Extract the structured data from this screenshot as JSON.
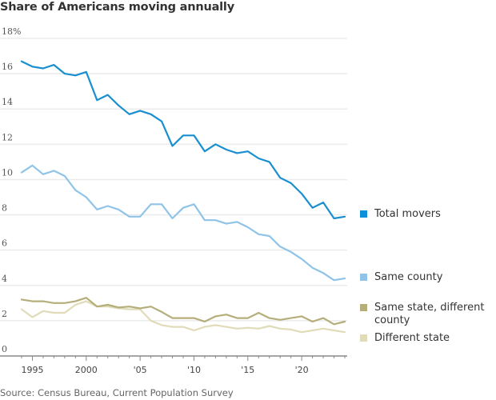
{
  "title": "Share of Americans moving annually",
  "source": "Source: Census Bureau, Current Population Survey",
  "chart_data": {
    "type": "line",
    "title": "Share of Americans moving annually",
    "xlabel": "",
    "ylabel": "",
    "x": [
      1994,
      1995,
      1996,
      1997,
      1998,
      1999,
      2000,
      2001,
      2002,
      2003,
      2004,
      2005,
      2006,
      2007,
      2008,
      2009,
      2010,
      2011,
      2012,
      2013,
      2014,
      2015,
      2016,
      2017,
      2018,
      2019,
      2020,
      2021,
      2022,
      2023,
      2024
    ],
    "xlim": [
      1994,
      2024
    ],
    "ylim": [
      0,
      18
    ],
    "grid": true,
    "y_ticks": [
      {
        "value": 0,
        "label": "0"
      },
      {
        "value": 2,
        "label": "2"
      },
      {
        "value": 4,
        "label": "4"
      },
      {
        "value": 6,
        "label": "6"
      },
      {
        "value": 8,
        "label": "8"
      },
      {
        "value": 10,
        "label": "10"
      },
      {
        "value": 12,
        "label": "12"
      },
      {
        "value": 14,
        "label": "14"
      },
      {
        "value": 16,
        "label": "16"
      },
      {
        "value": 18,
        "label": "18%"
      }
    ],
    "x_ticks": [
      {
        "value": 1995,
        "label": "1995"
      },
      {
        "value": 2000,
        "label": "2000"
      },
      {
        "value": 2005,
        "label": "'05"
      },
      {
        "value": 2010,
        "label": "'10"
      },
      {
        "value": 2015,
        "label": "'15"
      },
      {
        "value": 2020,
        "label": "'20"
      }
    ],
    "legend_position": "right",
    "series": [
      {
        "name": "Total movers",
        "color": "#1a8fd0",
        "swatch": "#0a8fd8",
        "values": [
          16.7,
          16.4,
          16.3,
          16.5,
          16.0,
          15.9,
          16.1,
          14.5,
          14.8,
          14.2,
          13.7,
          13.9,
          13.7,
          13.3,
          11.9,
          12.5,
          12.5,
          11.6,
          12.0,
          11.7,
          11.5,
          11.6,
          11.2,
          11.0,
          10.1,
          9.8,
          9.2,
          8.4,
          8.7,
          7.8,
          7.9
        ]
      },
      {
        "name": "Same county",
        "color": "#8fc4e8",
        "swatch": "#8fc4e8",
        "values": [
          10.4,
          10.8,
          10.3,
          10.5,
          10.2,
          9.4,
          9.0,
          8.3,
          8.5,
          8.3,
          7.9,
          7.9,
          8.6,
          8.6,
          7.8,
          8.4,
          8.6,
          7.7,
          7.7,
          7.5,
          7.6,
          7.3,
          6.9,
          6.8,
          6.2,
          5.9,
          5.5,
          5.0,
          4.7,
          4.3,
          4.4
        ]
      },
      {
        "name": "Same state, different county",
        "color": "#b5ae7a",
        "swatch": "#b5ae7a",
        "values": [
          3.2,
          3.1,
          3.1,
          3.0,
          3.0,
          3.1,
          3.3,
          2.8,
          2.9,
          2.75,
          2.8,
          2.7,
          2.8,
          2.5,
          2.15,
          2.15,
          2.15,
          1.95,
          2.25,
          2.35,
          2.15,
          2.15,
          2.45,
          2.15,
          2.05,
          2.15,
          2.25,
          1.95,
          2.15,
          1.8,
          1.95
        ]
      },
      {
        "name": "Different state",
        "color": "#e0dbb8",
        "swatch": "#e0dbb8",
        "values": [
          2.65,
          2.2,
          2.55,
          2.45,
          2.45,
          2.9,
          3.1,
          2.8,
          2.8,
          2.7,
          2.65,
          2.65,
          2.0,
          1.75,
          1.65,
          1.65,
          1.45,
          1.65,
          1.75,
          1.65,
          1.55,
          1.6,
          1.55,
          1.7,
          1.55,
          1.5,
          1.35,
          1.45,
          1.55,
          1.45,
          1.35
        ]
      }
    ]
  }
}
